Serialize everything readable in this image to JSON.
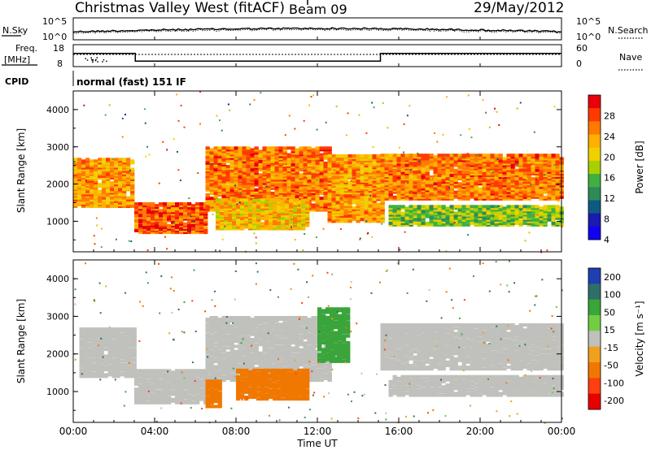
{
  "header": {
    "title": "Christmas Valley West (fitACF)",
    "beam": "Beam 09",
    "date": "29/May/2012"
  },
  "noise_panel": {
    "left_label": "N.Sky",
    "left_ticks": [
      "10^5",
      "10^0"
    ],
    "right_ticks": [
      "10^5",
      "10^0"
    ],
    "right_label": "N.Search"
  },
  "freq_panel": {
    "left_label_1": "Freq.",
    "left_label_2": "[MHz]",
    "left_ticks": [
      "18",
      "8"
    ],
    "right_ticks": [
      "60",
      "0"
    ],
    "right_label": "Nave",
    "freq_steps": [
      {
        "t": 0.0,
        "mhz": 14.0
      },
      {
        "t": 3.05,
        "mhz": 10.5
      },
      {
        "t": 15.1,
        "mhz": 14.0
      },
      {
        "t": 24.0,
        "mhz": 14.0
      }
    ]
  },
  "cpid": {
    "label": "CPID",
    "mode": "normal (fast) 151 IF"
  },
  "x_axis": {
    "label": "Time UT",
    "ticks": [
      "00:00",
      "04:00",
      "08:00",
      "12:00",
      "16:00",
      "20:00",
      "00:00"
    ],
    "range_hours": [
      0,
      24
    ]
  },
  "y_axis": {
    "label": "Slant Range [km]",
    "ticks": [
      "4000",
      "3000",
      "2000",
      "1000"
    ],
    "range_km": [
      180,
      4500
    ]
  },
  "power_colorbar": {
    "label": "Power [dB]",
    "ticks": [
      "28",
      "24",
      "20",
      "16",
      "12",
      "8",
      "4"
    ],
    "colors": [
      "#e8000b",
      "#ff3a00",
      "#ff7a00",
      "#ffb000",
      "#f0d000",
      "#a8d000",
      "#40b040",
      "#2e8b57",
      "#0f5a80",
      "#1a1ab0",
      "#1200f0"
    ]
  },
  "velocity_colorbar": {
    "label": "Velocity [m s⁻¹]",
    "ticks": [
      "200",
      "100",
      "50",
      "15",
      "-15",
      "-50",
      "-100",
      "-200"
    ],
    "colors": [
      "#1f3fb0",
      "#2e6f6a",
      "#3aa53a",
      "#72cc44",
      "#c0c0bc",
      "#f0a020",
      "#f07800",
      "#ff4010",
      "#e80000"
    ]
  },
  "chart_data": [
    {
      "type": "heatmap",
      "title": "Power",
      "xlabel": "Time UT",
      "ylabel": "Slant Range [km]",
      "xlim": [
        0,
        24
      ],
      "ylim": [
        180,
        4500
      ],
      "colorbar": "Power [dB]",
      "features": [
        {
          "t0": 0.0,
          "t1": 3.0,
          "r0": 1400,
          "r1": 2700,
          "power_db": 22
        },
        {
          "t0": 3.0,
          "t1": 6.5,
          "r0": 700,
          "r1": 1500,
          "power_db": 26
        },
        {
          "t0": 6.5,
          "t1": 12.5,
          "r0": 1300,
          "r1": 3000,
          "power_db": 24
        },
        {
          "t0": 7.0,
          "t1": 11.5,
          "r0": 800,
          "r1": 1600,
          "power_db": 20
        },
        {
          "t0": 12.5,
          "t1": 15.1,
          "r0": 1000,
          "r1": 2800,
          "power_db": 22
        },
        {
          "t0": 15.1,
          "t1": 24.0,
          "r0": 1600,
          "r1": 2800,
          "power_db": 24
        },
        {
          "t0": 15.5,
          "t1": 24.0,
          "r0": 900,
          "r1": 1400,
          "power_db": 14
        }
      ]
    },
    {
      "type": "heatmap",
      "title": "Velocity",
      "xlabel": "Time UT",
      "ylabel": "Slant Range [km]",
      "xlim": [
        0,
        24
      ],
      "ylim": [
        180,
        4500
      ],
      "colorbar": "Velocity [m s-1]",
      "features": [
        {
          "t0": 0.3,
          "t1": 3.0,
          "r0": 1400,
          "r1": 2700,
          "velocity": 0
        },
        {
          "t0": 3.0,
          "t1": 6.5,
          "r0": 700,
          "r1": 1600,
          "velocity": 0
        },
        {
          "t0": 6.5,
          "t1": 12.5,
          "r0": 1300,
          "r1": 3000,
          "velocity": 0
        },
        {
          "t0": 6.5,
          "t1": 7.2,
          "r0": 600,
          "r1": 1300,
          "velocity": -60
        },
        {
          "t0": 8.0,
          "t1": 11.5,
          "r0": 800,
          "r1": 1600,
          "velocity": -60
        },
        {
          "t0": 12.0,
          "t1": 13.5,
          "r0": 1800,
          "r1": 3200,
          "velocity": 60
        },
        {
          "t0": 15.1,
          "t1": 24.0,
          "r0": 1600,
          "r1": 2800,
          "velocity": 0
        },
        {
          "t0": 15.5,
          "t1": 24.0,
          "r0": 900,
          "r1": 1400,
          "velocity": 0
        }
      ]
    }
  ]
}
